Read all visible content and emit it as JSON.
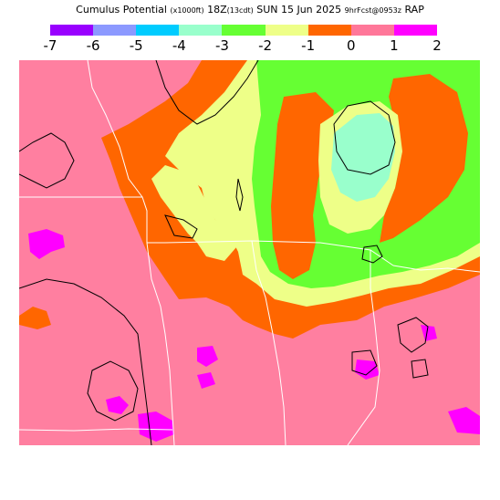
{
  "header": {
    "title_main": "Cumulus Potential",
    "title_units": "(x1000ft)",
    "title_time": "18Z",
    "title_local": "(13cdt)",
    "title_date": "SUN 15 Jun 2025",
    "title_fcst": "9hrFcst@0953z",
    "title_model": "RAP"
  },
  "legend": {
    "colors": [
      "#9900ff",
      "#8c99ff",
      "#00ccff",
      "#99ffcc",
      "#66ff33",
      "#eeff88",
      "#ff6600",
      "#ff7799",
      "#ff00ff"
    ],
    "tick_labels": [
      "-7",
      "-6",
      "-5",
      "-4",
      "-3",
      "-2",
      "-1",
      "0",
      "1",
      "2"
    ]
  },
  "map": {
    "background_value_color": "#ff7fa0",
    "boundary_color": "#ffffff",
    "contour_color": "#000000"
  }
}
